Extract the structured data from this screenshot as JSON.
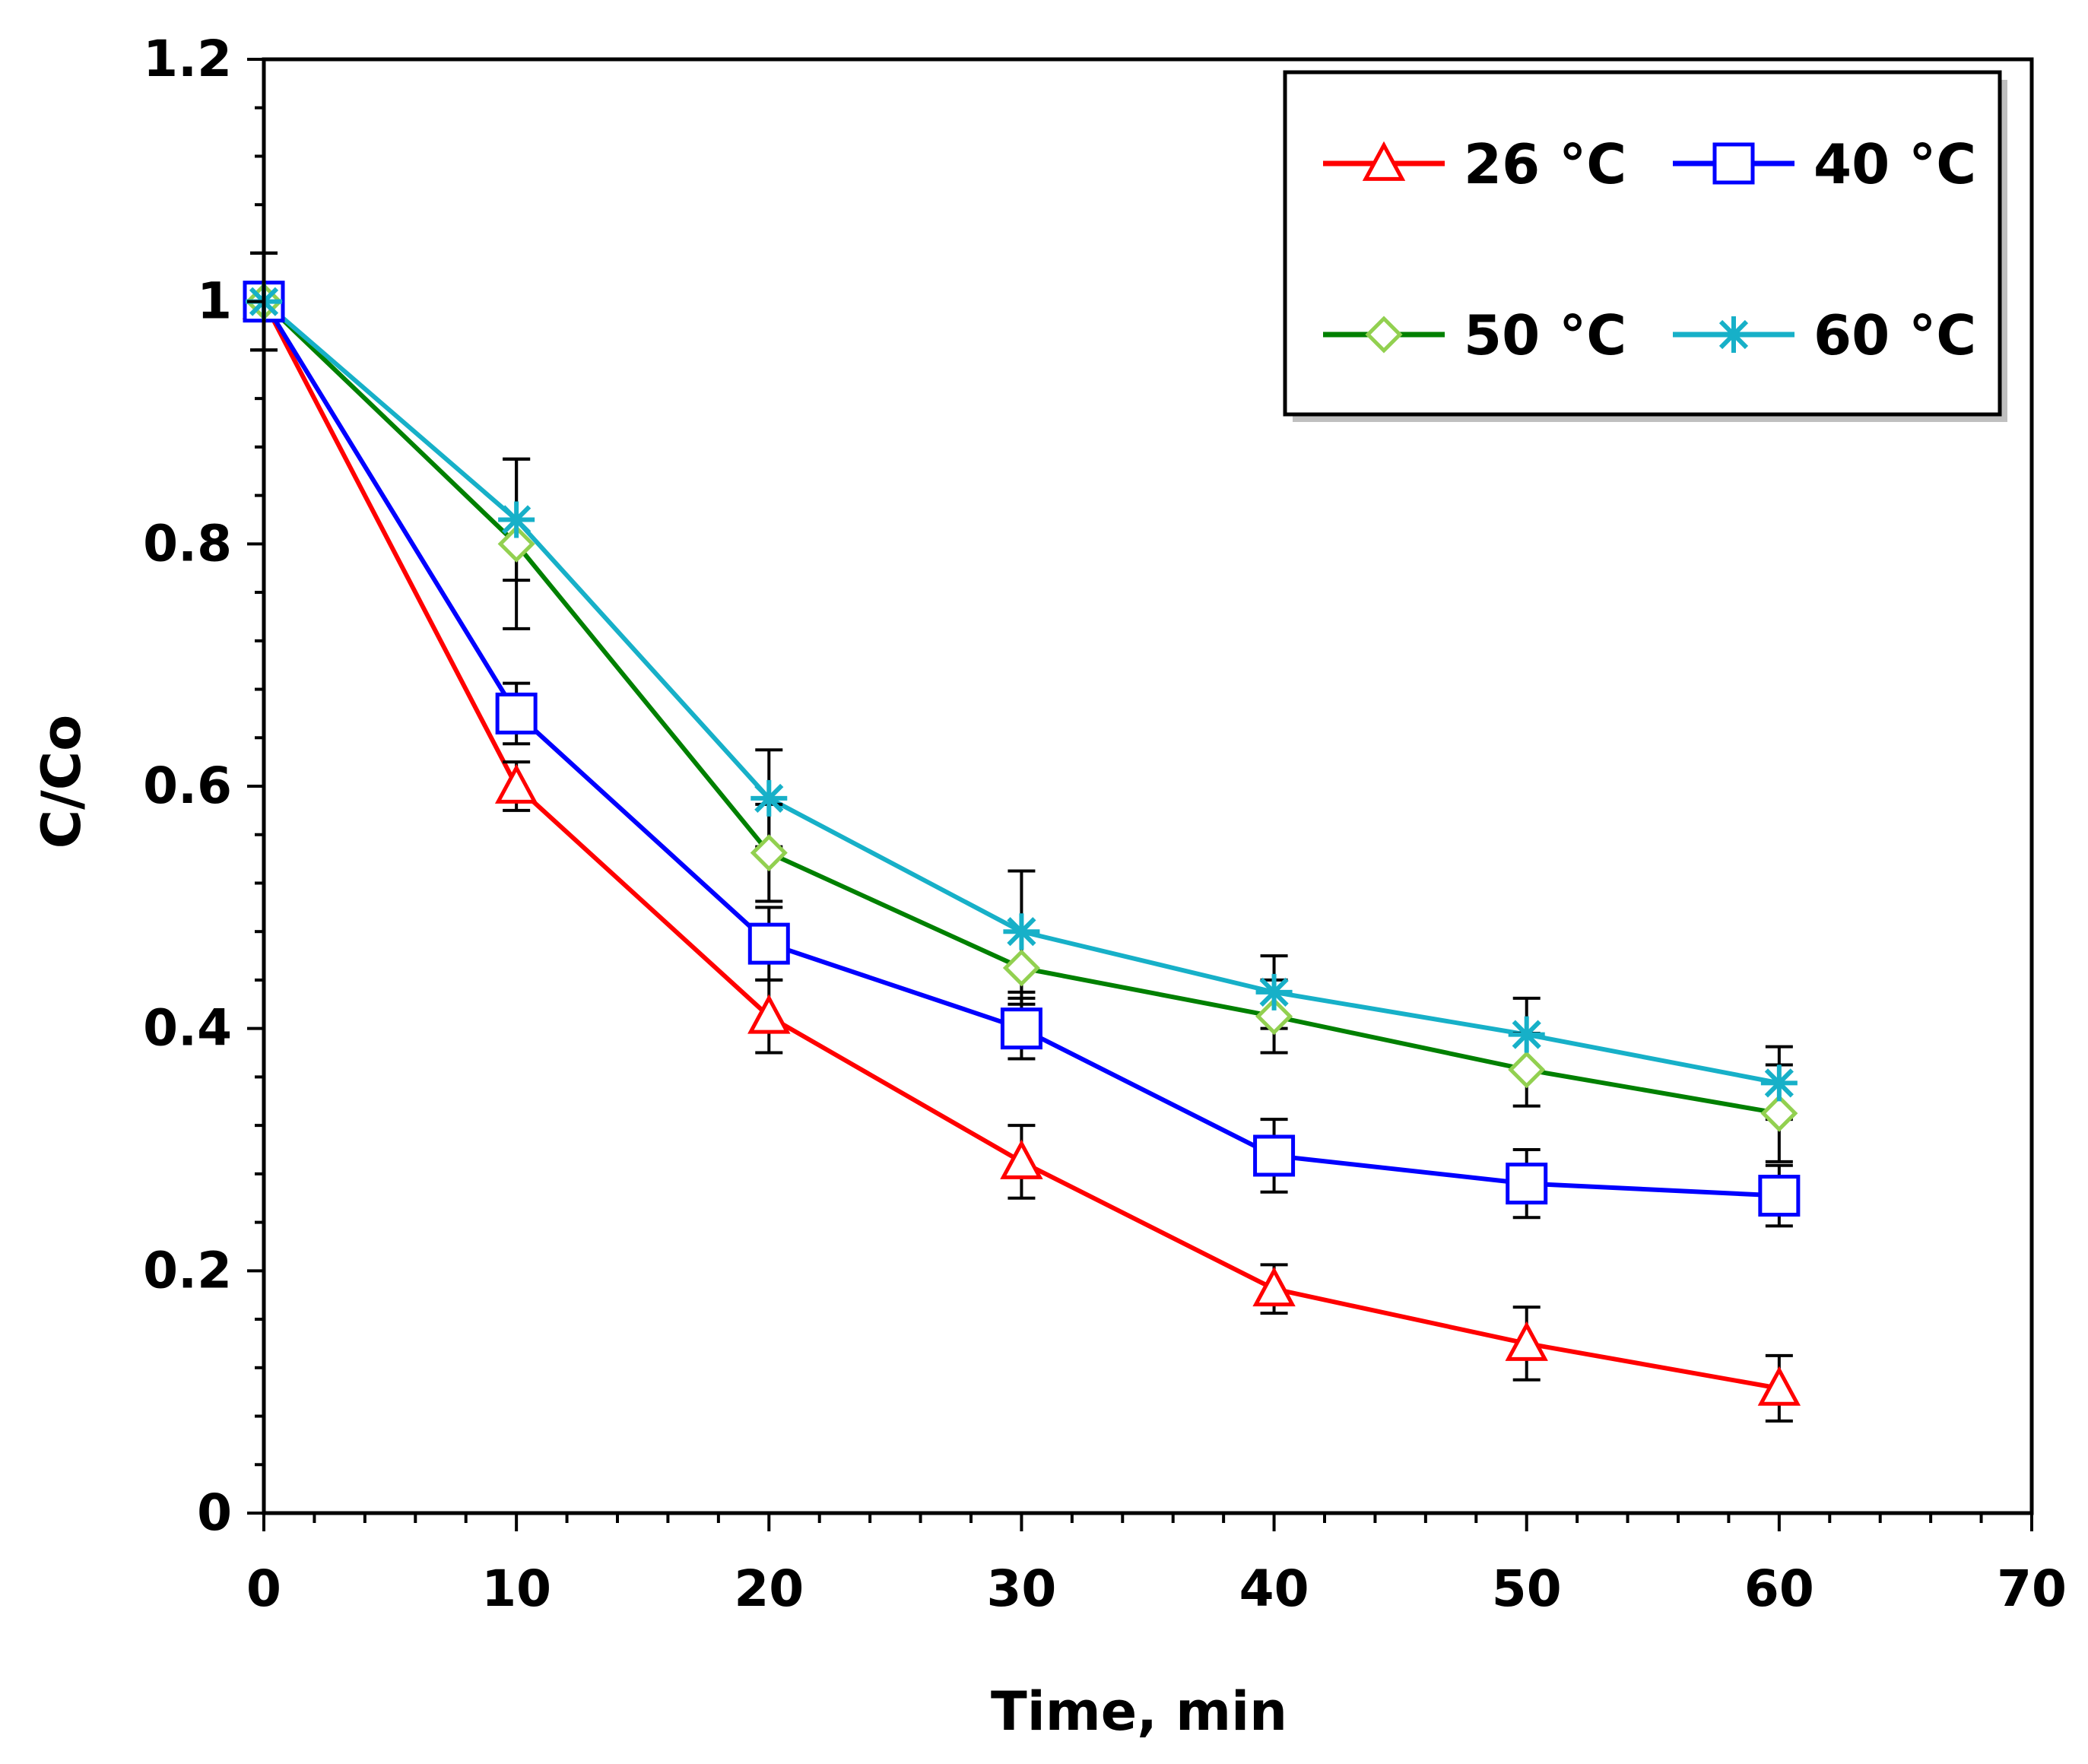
{
  "chart_data": {
    "type": "line",
    "title": "",
    "xlabel": "Time, min",
    "ylabel": "C/Co",
    "xlim": [
      0,
      70
    ],
    "ylim": [
      0,
      1.2
    ],
    "xticks": [
      "0",
      "10",
      "20",
      "30",
      "40",
      "50",
      "60",
      "70"
    ],
    "yticks": [
      "0",
      "0.2",
      "0.4",
      "0.6",
      "0.8",
      "1",
      "1.2"
    ],
    "x": [
      0,
      10,
      20,
      30,
      40,
      50,
      60
    ],
    "grid": false,
    "legend_position": "top-right",
    "series": [
      {
        "name": "26 °C",
        "color": "#ff0000",
        "marker": "triangle",
        "values": [
          1.0,
          0.6,
          0.41,
          0.29,
          0.185,
          0.14,
          0.103
        ],
        "errors": [
          0.04,
          0.02,
          0.03,
          0.03,
          0.02,
          0.03,
          0.027
        ]
      },
      {
        "name": "40 °C",
        "color": "#0000ff",
        "marker": "square",
        "values": [
          1.0,
          0.66,
          0.47,
          0.4,
          0.295,
          0.272,
          0.262
        ],
        "errors": [
          0.04,
          0.025,
          0.03,
          0.025,
          0.03,
          0.028,
          0.025
        ]
      },
      {
        "name": "50 °C",
        "color": "#008000",
        "marker_color": "#92d050",
        "marker": "diamond",
        "values": [
          1.0,
          0.8,
          0.545,
          0.45,
          0.41,
          0.366,
          0.33
        ],
        "errors": [
          0.04,
          0.07,
          0.04,
          0.03,
          0.03,
          0.03,
          0.04
        ]
      },
      {
        "name": "60 °C",
        "color": "#17b0c8",
        "marker": "asterisk",
        "values": [
          1.0,
          0.82,
          0.59,
          0.48,
          0.43,
          0.395,
          0.355
        ],
        "errors": [
          0.04,
          0.05,
          0.04,
          0.05,
          0.03,
          0.03,
          0.03
        ]
      }
    ]
  }
}
